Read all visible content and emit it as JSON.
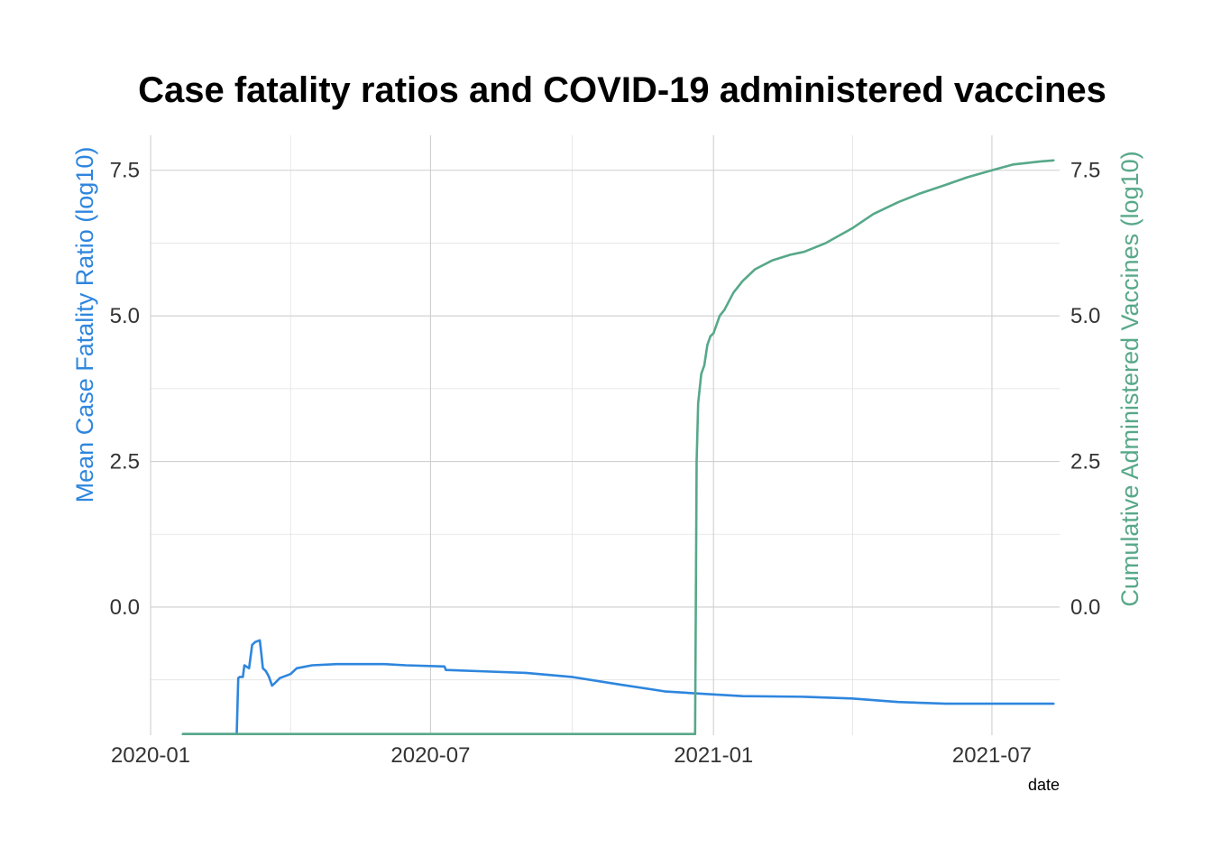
{
  "chart_data": {
    "type": "line",
    "title": "Case fatality ratios and COVID-19 administered vaccines",
    "xlabel": "date",
    "ylabel_left": "Mean Case Fatality Ratio (log10)",
    "ylabel_right": "Cumulative Administered Vaccines (log10)",
    "x_ticks": [
      "2020-01",
      "2020-07",
      "2021-01",
      "2021-07"
    ],
    "y_ticks": [
      "0.0",
      "2.5",
      "5.0",
      "7.5"
    ],
    "y_tick_values": [
      0,
      2.5,
      5,
      7.5
    ],
    "xlim": [
      "2020-01-01",
      "2021-08-14"
    ],
    "ylim": [
      -2.2,
      8.1
    ],
    "grid": true,
    "colors": {
      "cfr": "#2e86de",
      "vaccines": "#57a889"
    },
    "series": [
      {
        "name": "Mean Case Fatality Ratio (log10)",
        "axis": "left",
        "color": "#2e86de",
        "points": [
          [
            "2020-01-22",
            -2.18
          ],
          [
            "2020-02-26",
            -2.18
          ],
          [
            "2020-02-27",
            -1.22
          ],
          [
            "2020-02-28",
            -1.2
          ],
          [
            "2020-03-01",
            -1.2
          ],
          [
            "2020-03-02",
            -1.0
          ],
          [
            "2020-03-05",
            -1.05
          ],
          [
            "2020-03-07",
            -0.65
          ],
          [
            "2020-03-09",
            -0.6
          ],
          [
            "2020-03-12",
            -0.57
          ],
          [
            "2020-03-13",
            -0.8
          ],
          [
            "2020-03-14",
            -1.05
          ],
          [
            "2020-03-16",
            -1.1
          ],
          [
            "2020-03-18",
            -1.2
          ],
          [
            "2020-03-20",
            -1.35
          ],
          [
            "2020-03-22",
            -1.3
          ],
          [
            "2020-03-25",
            -1.22
          ],
          [
            "2020-04-01",
            -1.15
          ],
          [
            "2020-04-05",
            -1.05
          ],
          [
            "2020-04-15",
            -1.0
          ],
          [
            "2020-05-01",
            -0.98
          ],
          [
            "2020-06-01",
            -0.98
          ],
          [
            "2020-06-15",
            -1.0
          ],
          [
            "2020-07-10",
            -1.02
          ],
          [
            "2020-07-11",
            -1.08
          ],
          [
            "2020-08-01",
            -1.1
          ],
          [
            "2020-09-01",
            -1.13
          ],
          [
            "2020-10-01",
            -1.2
          ],
          [
            "2020-11-01",
            -1.33
          ],
          [
            "2020-12-01",
            -1.45
          ],
          [
            "2021-01-01",
            -1.5
          ],
          [
            "2021-01-20",
            -1.53
          ],
          [
            "2021-03-01",
            -1.54
          ],
          [
            "2021-04-01",
            -1.57
          ],
          [
            "2021-05-01",
            -1.63
          ],
          [
            "2021-06-01",
            -1.66
          ],
          [
            "2021-08-10",
            -1.66
          ]
        ]
      },
      {
        "name": "Cumulative Administered Vaccines (log10)",
        "axis": "right",
        "color": "#57a889",
        "points": [
          [
            "2020-01-22",
            -2.18
          ],
          [
            "2020-12-20",
            -2.18
          ],
          [
            "2020-12-21",
            2.5
          ],
          [
            "2020-12-22",
            3.5
          ],
          [
            "2020-12-24",
            4.0
          ],
          [
            "2020-12-26",
            4.15
          ],
          [
            "2020-12-28",
            4.5
          ],
          [
            "2020-12-30",
            4.65
          ],
          [
            "2021-01-01",
            4.7
          ],
          [
            "2021-01-05",
            5.0
          ],
          [
            "2021-01-08",
            5.1
          ],
          [
            "2021-01-14",
            5.4
          ],
          [
            "2021-01-20",
            5.6
          ],
          [
            "2021-01-28",
            5.8
          ],
          [
            "2021-02-08",
            5.95
          ],
          [
            "2021-02-20",
            6.05
          ],
          [
            "2021-03-01",
            6.1
          ],
          [
            "2021-03-15",
            6.25
          ],
          [
            "2021-04-01",
            6.5
          ],
          [
            "2021-04-15",
            6.75
          ],
          [
            "2021-05-01",
            6.95
          ],
          [
            "2021-05-15",
            7.1
          ],
          [
            "2021-06-01",
            7.25
          ],
          [
            "2021-06-15",
            7.38
          ],
          [
            "2021-07-01",
            7.5
          ],
          [
            "2021-07-15",
            7.6
          ],
          [
            "2021-08-01",
            7.65
          ],
          [
            "2021-08-10",
            7.67
          ]
        ]
      }
    ]
  }
}
